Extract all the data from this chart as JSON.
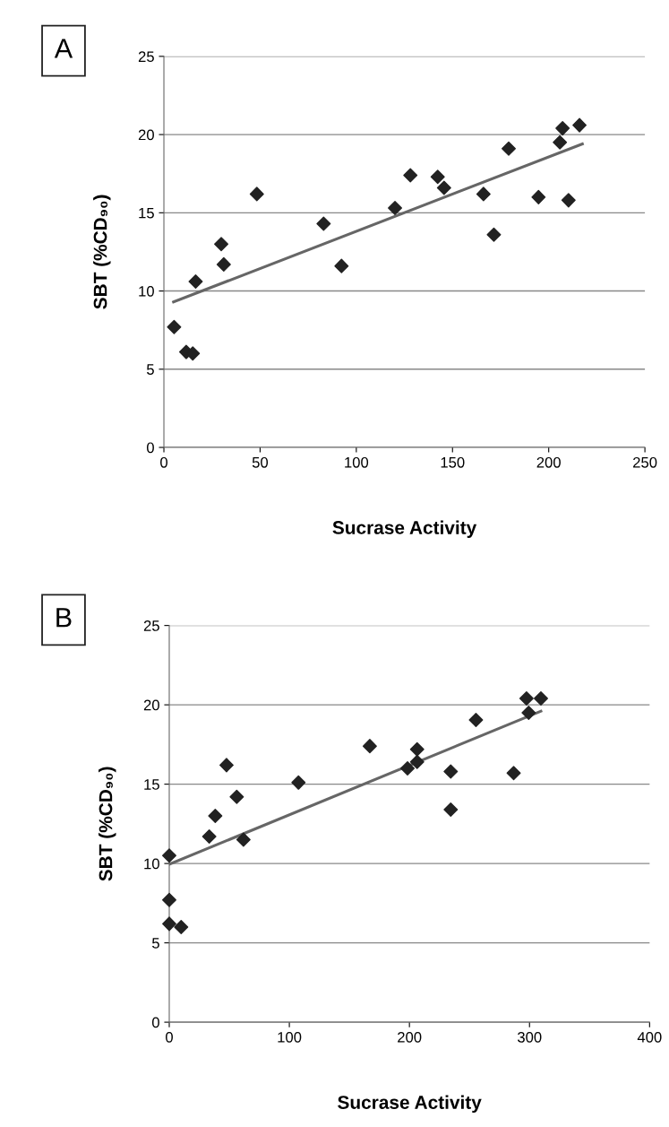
{
  "chart_data": [
    {
      "type": "scatter",
      "xlabel": "Sucrase Activity",
      "ylabel": "SBT (%CD₉₀)",
      "annotations": [
        "A"
      ],
      "xlim": [
        0,
        250
      ],
      "xticks": [
        0,
        50,
        100,
        150,
        200,
        250
      ],
      "ylim": [
        0,
        25
      ],
      "yticks": [
        0,
        5,
        10,
        15,
        20,
        25
      ],
      "grid": "y",
      "series": [
        {
          "marker": "diamond",
          "color": "#222222",
          "x": [
            5.3,
            11.6,
            15.0,
            16.5,
            29.8,
            31.1,
            48.3,
            83.0,
            92.3,
            120.1,
            128.1,
            142.3,
            145.6,
            166.1,
            171.5,
            179.2,
            194.7,
            205.8,
            207.2,
            210.3,
            216
          ],
          "values": [
            7.7,
            6.1,
            6.0,
            10.6,
            13.0,
            11.7,
            16.2,
            14.3,
            11.6,
            15.3,
            17.4,
            17.3,
            16.6,
            16.2,
            13.6,
            19.1,
            16.0,
            19.5,
            20.4,
            15.8,
            20.6
          ]
        },
        {
          "type": "line",
          "marker": "none",
          "color": "#666666",
          "x": [
            5.0,
            217.5
          ],
          "values": [
            9.3,
            19.4
          ]
        }
      ]
    },
    {
      "type": "scatter",
      "xlabel": "Sucrase Activity",
      "ylabel": "SBT (%CD₉₀)",
      "annotations": [
        "B"
      ],
      "xlim": [
        0,
        400
      ],
      "xticks": [
        0,
        100,
        200,
        300,
        400
      ],
      "ylim": [
        0,
        25
      ],
      "yticks": [
        0,
        5,
        10,
        15,
        20,
        25
      ],
      "grid": "y",
      "series": [
        {
          "marker": "diamond",
          "color": "#222222",
          "x": [
            0,
            0,
            0,
            9.9,
            33.3,
            38.3,
            47.7,
            56.2,
            61.8,
            107.6,
            167,
            198.4,
            206.4,
            206.4,
            234.4,
            234.4,
            255.4,
            286.8,
            297.5,
            299.3,
            309.5
          ],
          "values": [
            10.5,
            7.7,
            6.2,
            6.0,
            11.7,
            13.0,
            16.2,
            14.2,
            11.5,
            15.1,
            17.4,
            16.0,
            16.4,
            17.2,
            15.8,
            13.4,
            19.05,
            15.7,
            20.4,
            19.5,
            20.4
          ]
        },
        {
          "type": "line",
          "marker": "none",
          "color": "#666666",
          "x": [
            0,
            309.5
          ],
          "values": [
            9.95,
            19.6
          ]
        }
      ]
    }
  ]
}
